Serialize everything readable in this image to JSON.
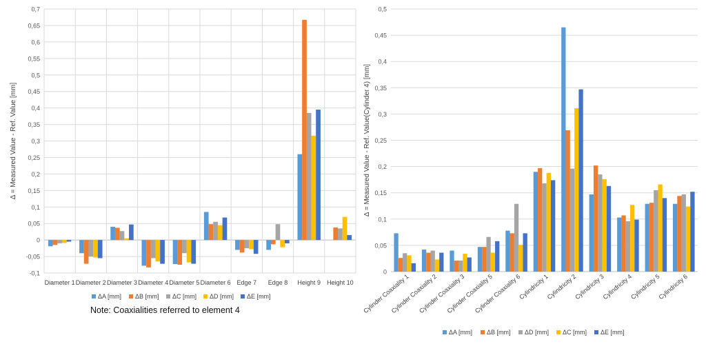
{
  "note": "Note: Coaxialities referred to element 4",
  "chart_data": [
    {
      "type": "bar",
      "ylabel": "Δ = Measured Value - Ref. Value [mm]",
      "ylim": [
        -0.1,
        0.7
      ],
      "y_ticks": [
        "-0,1",
        "-0,05",
        "0",
        "0,05",
        "0,1",
        "0,15",
        "0,2",
        "0,25",
        "0,3",
        "0,35",
        "0,4",
        "0,45",
        "0,5",
        "0,55",
        "0,6",
        "0,65",
        "0,7"
      ],
      "grid": true,
      "legend": "bottom",
      "categories": [
        "Diameter 1",
        "Diameter 2",
        "Diameter 3",
        "Diameter 4",
        "Diameter 5",
        "Diameter 6",
        "Edge 7",
        "Edge 8",
        "Height 9",
        "Height 10"
      ],
      "series": [
        {
          "name": "ΔA [mm]",
          "color": "#5B9BD5",
          "values": [
            -0.019,
            -0.04,
            0.04,
            -0.078,
            -0.073,
            0.085,
            -0.03,
            -0.03,
            0.26,
            0
          ]
        },
        {
          "name": "ΔB [mm]",
          "color": "#ED7D31",
          "values": [
            -0.015,
            -0.072,
            0.037,
            -0.083,
            -0.075,
            0.048,
            -0.038,
            -0.013,
            0.667,
            0.038
          ]
        },
        {
          "name": "ΔC [mm]",
          "color": "#A5A5A5",
          "values": [
            -0.01,
            -0.05,
            0.027,
            -0.055,
            -0.04,
            0.055,
            -0.025,
            0.048,
            0.385,
            0.035
          ]
        },
        {
          "name": "ΔD [mm]",
          "color": "#FFC000",
          "values": [
            -0.009,
            -0.053,
            0.005,
            -0.065,
            -0.068,
            0.045,
            -0.028,
            -0.022,
            0.316,
            0.07
          ]
        },
        {
          "name": "ΔE [mm]",
          "color": "#4472C4",
          "values": [
            -0.005,
            -0.055,
            0.047,
            -0.072,
            -0.072,
            0.068,
            -0.042,
            -0.01,
            0.395,
            0.015
          ]
        }
      ]
    },
    {
      "type": "bar",
      "ylabel": "Δ = Measured Value - Ref. Value(Cylinder 4) [mm]",
      "ylim": [
        0,
        0.5
      ],
      "y_ticks": [
        "0",
        "0,05",
        "0,1",
        "0,15",
        "0,2",
        "0,25",
        "0,3",
        "0,35",
        "0,4",
        "0,45",
        "0,5"
      ],
      "grid": true,
      "legend": "bottom",
      "categories": [
        "Cylinder Coaxiality 1",
        "Cylinder Coaxiality 2",
        "Cylinder Coaxiality 3",
        "Cylinder Coaxiality 5",
        "Cylinder Coaxiality 6",
        "Cylindricity 1",
        "Cylindricity 2",
        "Cylindricity 3",
        "Cylindricity 4",
        "Cylindricity 5",
        "Cylindricity 6"
      ],
      "series": [
        {
          "name": "ΔA [mm]",
          "color": "#5B9BD5",
          "values": [
            0.073,
            0.042,
            0.04,
            0.047,
            0.078,
            0.19,
            0.465,
            0.147,
            0.103,
            0.129,
            0.129
          ]
        },
        {
          "name": "ΔB [mm]",
          "color": "#ED7D31",
          "values": [
            0.026,
            0.036,
            0.021,
            0.047,
            0.073,
            0.197,
            0.269,
            0.202,
            0.107,
            0.131,
            0.144
          ]
        },
        {
          "name": "ΔD [mm]",
          "color": "#A5A5A5",
          "values": [
            0.035,
            0.04,
            0.021,
            0.066,
            0.129,
            0.168,
            0.196,
            0.185,
            0.096,
            0.155,
            0.147
          ]
        },
        {
          "name": "ΔC [mm]",
          "color": "#FFC000",
          "values": [
            0.031,
            0.023,
            0.034,
            0.036,
            0.051,
            0.188,
            0.311,
            0.176,
            0.127,
            0.166,
            0.124
          ]
        },
        {
          "name": "ΔE [mm]",
          "color": "#4472C4",
          "values": [
            0.016,
            0.036,
            0.027,
            0.058,
            0.073,
            0.174,
            0.347,
            0.163,
            0.099,
            0.14,
            0.152
          ]
        }
      ]
    }
  ]
}
